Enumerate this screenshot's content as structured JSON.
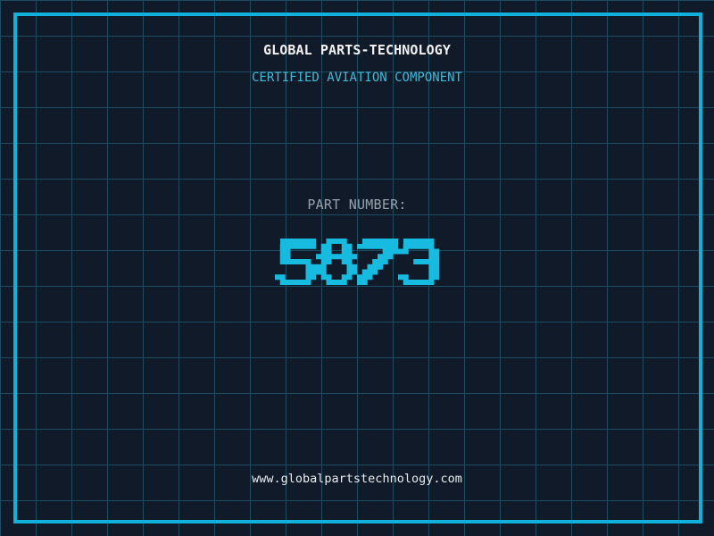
{
  "header": {
    "title": "GLOBAL PARTS-TECHNOLOGY",
    "subtitle": "CERTIFIED AVIATION COMPONENT"
  },
  "part": {
    "label": "PART NUMBER:",
    "number": "5873"
  },
  "footer": {
    "website": "www.globalpartstechnology.com"
  },
  "colors": {
    "background": "#101a29",
    "grid_line": "#1d4b60",
    "frame": "#10b2d8",
    "part_number": "#17bbdf",
    "title": "#f2f2f2",
    "subtitle": "#41b8d6",
    "label": "#98a2ad",
    "website": "#e9edf0"
  }
}
